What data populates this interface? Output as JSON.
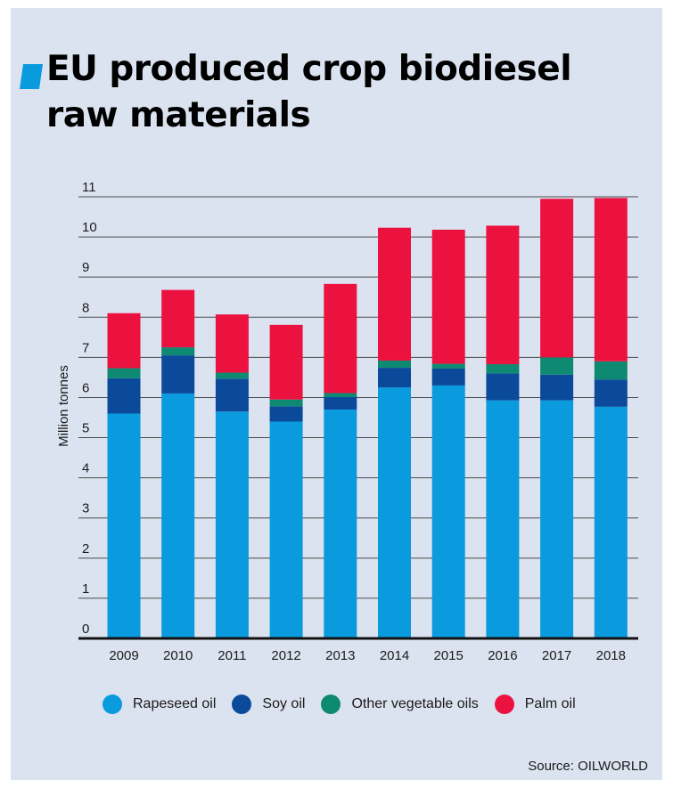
{
  "title": "EU produced crop biodiesel raw materials",
  "source": "Source: OILWORLD",
  "colors": {
    "background": "#dce3f0",
    "accent": "#0a9ade",
    "grid": "#4a4a4a"
  },
  "chart_data": {
    "type": "bar",
    "stacked": true,
    "ylabel": "Million tonnes",
    "ylim": [
      0,
      11
    ],
    "yticks": [
      0,
      1,
      2,
      3,
      4,
      5,
      6,
      7,
      8,
      9,
      10,
      11
    ],
    "grid": true,
    "legend_position": "bottom",
    "categories": [
      "2009",
      "2010",
      "2011",
      "2012",
      "2013",
      "2014",
      "2015",
      "2016",
      "2017",
      "2018"
    ],
    "series": [
      {
        "name": "Rapeseed oil",
        "color": "#0a9ade",
        "values": [
          5.6,
          6.1,
          5.65,
          5.4,
          5.7,
          6.25,
          6.3,
          5.93,
          5.93,
          5.77
        ]
      },
      {
        "name": "Soy oil",
        "color": "#0b4a9a",
        "values": [
          0.88,
          0.95,
          0.82,
          0.38,
          0.31,
          0.49,
          0.42,
          0.67,
          0.64,
          0.68
        ]
      },
      {
        "name": "Other vegetable oils",
        "color": "#0f8a72",
        "values": [
          0.25,
          0.2,
          0.15,
          0.17,
          0.1,
          0.18,
          0.12,
          0.23,
          0.43,
          0.45
        ]
      },
      {
        "name": "Palm oil",
        "color": "#ec1240",
        "values": [
          1.37,
          1.43,
          1.45,
          1.86,
          2.72,
          3.31,
          3.34,
          3.45,
          3.95,
          4.07
        ]
      }
    ]
  }
}
